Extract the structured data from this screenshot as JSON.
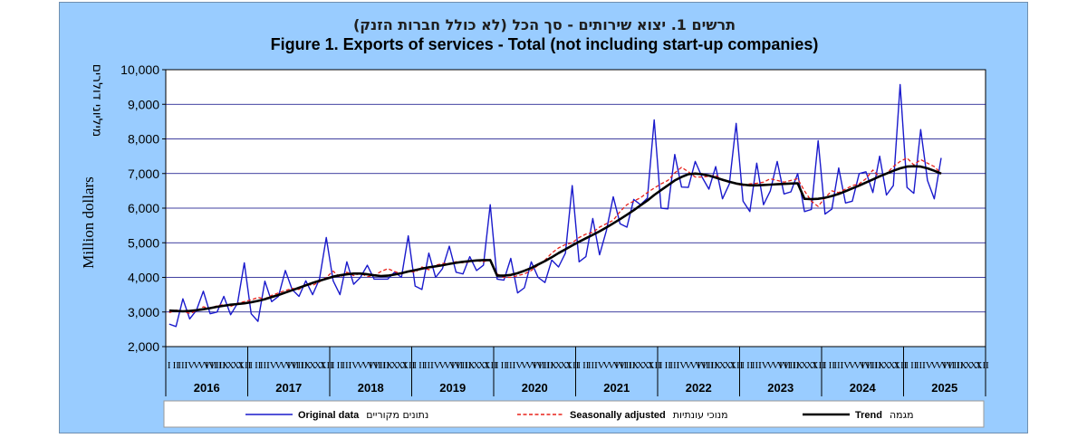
{
  "chart_data": {
    "type": "line",
    "title_he": "תרשים 1. יצוא שירותים - סך הכל (לא כולל חברות הזנק)",
    "title": "Figure 1. Exports of services - Total (not including start-up companies)",
    "ylabel": "Million dollars",
    "ylabel_he": "מיליוני דולרים",
    "ylim": [
      2000,
      10000
    ],
    "yticks": [
      "2,000",
      "3,000",
      "4,000",
      "5,000",
      "6,000",
      "7,000",
      "8,000",
      "9,000",
      "10,000"
    ],
    "grid": true,
    "legend_position": "bottom",
    "month_ticks": [
      "I",
      "II",
      "III",
      "IV",
      "V",
      "VI",
      "VII",
      "VIII",
      "IX",
      "X",
      "XI",
      "XII"
    ],
    "years": [
      "2016",
      "2017",
      "2018",
      "2019",
      "2020",
      "2021",
      "2022",
      "2023",
      "2024",
      "2025"
    ],
    "start": "2016-01",
    "series": [
      {
        "name": "Original data",
        "name_he": "נתונים מקוריים",
        "color": "#1a1acc",
        "style": "solid",
        "values": [
          2650,
          2580,
          3380,
          2800,
          3050,
          3600,
          2950,
          3000,
          3450,
          2920,
          3250,
          4420,
          2950,
          2730,
          3890,
          3300,
          3450,
          4200,
          3650,
          3450,
          3900,
          3500,
          3950,
          5150,
          3900,
          3500,
          4450,
          3800,
          4000,
          4350,
          3950,
          3950,
          3950,
          4150,
          4000,
          5200,
          3750,
          3650,
          4700,
          4000,
          4250,
          4900,
          4150,
          4100,
          4600,
          4200,
          4350,
          6100,
          3950,
          3920,
          4550,
          3550,
          3700,
          4450,
          4000,
          3850,
          4500,
          4300,
          4700,
          6650,
          4450,
          4600,
          5700,
          4650,
          5350,
          6330,
          5550,
          5450,
          6250,
          6100,
          6290,
          8550,
          6000,
          5980,
          7550,
          6610,
          6600,
          7350,
          6900,
          6550,
          7200,
          6270,
          6700,
          8450,
          6200,
          5900,
          7300,
          6100,
          6500,
          7350,
          6410,
          6470,
          7000,
          5900,
          5960,
          7950,
          5830,
          5970,
          7160,
          6150,
          6200,
          7000,
          7050,
          6450,
          7500,
          6380,
          6650,
          9570,
          6600,
          6430,
          8270,
          6800,
          6270,
          7450
        ]
      },
      {
        "name": "Seasonally adjusted",
        "name_he": "מנוכי עונתיות",
        "color": "#e8221a",
        "style": "dashed",
        "values": [
          2980,
          3050,
          3020,
          2960,
          3030,
          3150,
          3100,
          3180,
          3210,
          3160,
          3250,
          3300,
          3350,
          3420,
          3380,
          3480,
          3550,
          3620,
          3680,
          3650,
          3800,
          3770,
          3870,
          4000,
          4180,
          4000,
          4150,
          4050,
          4120,
          4020,
          4050,
          4170,
          4250,
          4170,
          4100,
          4180,
          4150,
          4300,
          4220,
          4350,
          4400,
          4400,
          4450,
          4420,
          4450,
          4480,
          4450,
          4520,
          4100,
          4000,
          4000,
          4050,
          4100,
          4200,
          4350,
          4500,
          4700,
          4850,
          4950,
          5000,
          5150,
          5250,
          5300,
          5450,
          5550,
          5650,
          5900,
          6100,
          6200,
          6300,
          6450,
          6580,
          6700,
          6800,
          7020,
          7180,
          7050,
          6900,
          6900,
          6920,
          6950,
          6800,
          6780,
          6700,
          6650,
          6700,
          6720,
          6750,
          6850,
          6800,
          6750,
          6800,
          6850,
          6500,
          6200,
          6050,
          6300,
          6500,
          6450,
          6550,
          6650,
          6700,
          6850,
          7100,
          6900,
          7000,
          7200,
          7350,
          7450,
          7250,
          7400,
          7300,
          7200,
          7000
        ]
      },
      {
        "name": "Trend",
        "name_he": "מגמה",
        "color": "#000000",
        "style": "solid",
        "values": [
          3040,
          3030,
          3020,
          3030,
          3050,
          3080,
          3110,
          3150,
          3180,
          3210,
          3230,
          3250,
          3280,
          3320,
          3370,
          3430,
          3490,
          3560,
          3630,
          3700,
          3770,
          3840,
          3900,
          3960,
          4020,
          4060,
          4090,
          4110,
          4110,
          4090,
          4060,
          4040,
          4050,
          4080,
          4120,
          4170,
          4210,
          4250,
          4290,
          4320,
          4350,
          4390,
          4420,
          4450,
          4470,
          4490,
          4500,
          4500,
          4050,
          4050,
          4070,
          4120,
          4190,
          4270,
          4370,
          4470,
          4580,
          4700,
          4810,
          4920,
          5030,
          5130,
          5230,
          5330,
          5440,
          5560,
          5680,
          5810,
          5940,
          6080,
          6220,
          6380,
          6520,
          6660,
          6800,
          6900,
          6980,
          7000,
          6980,
          6940,
          6880,
          6820,
          6760,
          6710,
          6680,
          6660,
          6660,
          6670,
          6680,
          6690,
          6700,
          6710,
          6720,
          6270,
          6260,
          6270,
          6300,
          6350,
          6410,
          6490,
          6570,
          6650,
          6740,
          6830,
          6920,
          7000,
          7080,
          7150,
          7200,
          7210,
          7200,
          7150,
          7080,
          7000
        ]
      }
    ]
  }
}
